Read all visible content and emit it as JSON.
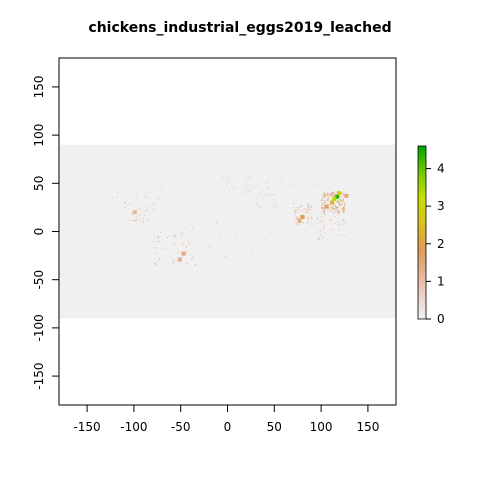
{
  "title": "chickens_industrial_eggs2019_leached",
  "map": {
    "xlim": [
      -180,
      180
    ],
    "ylim": [
      -180,
      180
    ],
    "raster_extent": {
      "lon": [
        -180,
        180
      ],
      "lat": [
        -90,
        90
      ]
    },
    "background_color": "#f0f0f0",
    "x_ticks": [
      -150,
      -100,
      -50,
      0,
      50,
      100,
      150
    ],
    "y_ticks": [
      -150,
      -100,
      -50,
      0,
      50,
      100,
      150
    ]
  },
  "legend": {
    "ticks": [
      0,
      1,
      2,
      3,
      4
    ],
    "range": [
      0,
      4.6
    ],
    "colors": [
      "#f2f2f2",
      "#e8c0b0",
      "#e09a5a",
      "#dcc020",
      "#c8e000",
      "#70c800",
      "#00a600"
    ]
  },
  "hotspots": [
    {
      "lon": 117,
      "lat": 36,
      "value": 4.3
    },
    {
      "lon": 114,
      "lat": 34,
      "value": 3.2
    },
    {
      "lon": 119,
      "lat": 40,
      "value": 2.6
    },
    {
      "lon": 112,
      "lat": 30,
      "value": 2.0
    },
    {
      "lon": 106,
      "lat": 26,
      "value": 1.4
    },
    {
      "lon": 80,
      "lat": 15,
      "value": 1.6
    },
    {
      "lon": 77,
      "lat": 11,
      "value": 1.2
    },
    {
      "lon": 127,
      "lat": 37,
      "value": 1.3
    },
    {
      "lon": -47,
      "lat": -23,
      "value": 1.2
    },
    {
      "lon": -51,
      "lat": -29,
      "value": 1.1
    },
    {
      "lon": -99,
      "lat": 20,
      "value": 1.0
    }
  ]
}
